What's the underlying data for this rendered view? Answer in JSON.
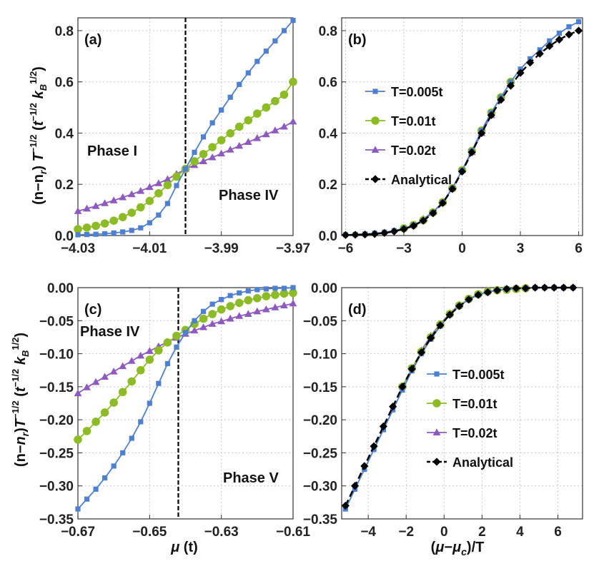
{
  "colors": {
    "blue": "#4f7fcf",
    "green": "#8dbb25",
    "purple": "#8d5bbf",
    "black": "#000000",
    "grid": "#c8c8c8"
  },
  "xlabel_bottom": "μ (t)",
  "xlabel_bottom_right": "(μ−μ_c)/T",
  "ylabel_top": "(n−n_r) T^{−1/2} (t^{−1/2} k_B^{1/2})",
  "ylabel_bottom": "(n−n_r) T^{−1/2} (t^{−1/2} k_B^{1/2})",
  "chart_data": [
    {
      "panel": "(a)",
      "type": "line",
      "xlim": [
        -4.03,
        -3.97
      ],
      "ylim": [
        0,
        0.85
      ],
      "xticks": [
        -4.03,
        -4.01,
        -3.99,
        -3.97
      ],
      "xtick_labels": [
        "−4.03",
        "−4.01",
        "−3.99",
        "−3.97"
      ],
      "yticks": [
        0,
        0.2,
        0.4,
        0.6,
        0.8
      ],
      "ytick_labels": [
        "0.0",
        "0.2",
        "0.4",
        "0.6",
        "0.8"
      ],
      "vline": -4.0,
      "annotations": [
        "Phase I",
        "Phase IV"
      ],
      "x": [
        -4.03,
        -4.0275,
        -4.025,
        -4.0225,
        -4.02,
        -4.0175,
        -4.015,
        -4.0125,
        -4.01,
        -4.0075,
        -4.005,
        -4.0025,
        -4.0,
        -3.9975,
        -3.995,
        -3.9925,
        -3.99,
        -3.9875,
        -3.985,
        -3.9825,
        -3.98,
        -3.9775,
        -3.975,
        -3.9725,
        -3.97
      ],
      "series": [
        {
          "name": "T=0.005t",
          "marker": "square",
          "values": [
            0.003,
            0.004,
            0.005,
            0.007,
            0.01,
            0.014,
            0.02,
            0.03,
            0.05,
            0.08,
            0.125,
            0.195,
            0.26,
            0.325,
            0.385,
            0.44,
            0.49,
            0.54,
            0.59,
            0.635,
            0.68,
            0.72,
            0.76,
            0.8,
            0.84
          ]
        },
        {
          "name": "T=0.01t",
          "marker": "circle",
          "values": [
            0.025,
            0.031,
            0.038,
            0.047,
            0.058,
            0.072,
            0.089,
            0.11,
            0.135,
            0.165,
            0.197,
            0.23,
            0.26,
            0.29,
            0.318,
            0.345,
            0.372,
            0.399,
            0.425,
            0.45,
            0.476,
            0.5,
            0.525,
            0.55,
            0.6
          ]
        },
        {
          "name": "T=0.02t",
          "marker": "triangle",
          "values": [
            0.095,
            0.105,
            0.115,
            0.126,
            0.137,
            0.149,
            0.161,
            0.174,
            0.189,
            0.204,
            0.22,
            0.24,
            0.26,
            0.275,
            0.29,
            0.305,
            0.32,
            0.335,
            0.35,
            0.365,
            0.38,
            0.395,
            0.41,
            0.425,
            0.445
          ]
        }
      ]
    },
    {
      "panel": "(b)",
      "type": "line",
      "xlim": [
        -6.2,
        6.2
      ],
      "ylim": [
        0,
        0.85
      ],
      "xticks": [
        -6,
        -3,
        0,
        3,
        6
      ],
      "xtick_labels": [
        "−6",
        "−3",
        "0",
        "3",
        "6"
      ],
      "yticks": [
        0,
        0.2,
        0.4,
        0.6,
        0.8
      ],
      "ytick_labels": [
        "0.0",
        "0.2",
        "0.4",
        "0.6",
        "0.8"
      ],
      "legend": [
        "T=0.005t",
        "T=0.01t",
        "T=0.02t",
        "Analytical"
      ],
      "x": [
        -6,
        -5.5,
        -5,
        -4.5,
        -4,
        -3.5,
        -3,
        -2.5,
        -2,
        -1.5,
        -1,
        -0.5,
        0,
        0.5,
        1,
        1.5,
        2,
        2.5,
        3,
        3.5,
        4,
        4.5,
        5,
        5.5,
        6
      ],
      "series": [
        {
          "name": "T=0.005t",
          "marker": "square",
          "values": [
            0.003,
            0.004,
            0.006,
            0.009,
            0.013,
            0.019,
            0.028,
            0.041,
            0.06,
            0.09,
            0.13,
            0.185,
            0.255,
            0.33,
            0.41,
            0.48,
            0.54,
            0.6,
            0.65,
            0.69,
            0.725,
            0.76,
            0.79,
            0.815,
            0.835
          ]
        },
        {
          "name": "T=0.01t",
          "marker": "circle",
          "values": [
            null,
            null,
            null,
            null,
            null,
            null,
            0.028,
            0.041,
            0.06,
            0.09,
            0.13,
            0.185,
            0.255,
            0.33,
            0.41,
            0.48,
            0.54,
            0.6,
            null,
            null,
            null,
            null,
            null,
            null,
            null
          ]
        },
        {
          "name": "T=0.02t",
          "marker": "triangle",
          "values": [
            null,
            null,
            null,
            null,
            null,
            null,
            null,
            null,
            0.065,
            0.092,
            0.13,
            0.185,
            0.255,
            0.325,
            0.4,
            0.47,
            null,
            null,
            null,
            null,
            null,
            null,
            null,
            null,
            null
          ]
        },
        {
          "name": "Analytical",
          "marker": "diamond",
          "values": [
            0.002,
            0.003,
            0.004,
            0.006,
            0.01,
            0.016,
            0.025,
            0.038,
            0.058,
            0.087,
            0.127,
            0.182,
            0.25,
            0.325,
            0.4,
            0.47,
            0.53,
            0.585,
            0.635,
            0.675,
            0.71,
            0.74,
            0.765,
            0.785,
            0.8
          ]
        }
      ]
    },
    {
      "panel": "(c)",
      "type": "line",
      "xlim": [
        -0.67,
        -0.61
      ],
      "ylim": [
        -0.35,
        0
      ],
      "xticks": [
        -0.67,
        -0.65,
        -0.63,
        -0.61
      ],
      "xtick_labels": [
        "−0.67",
        "−0.65",
        "−0.63",
        "−0.61"
      ],
      "yticks": [
        0,
        -0.05,
        -0.1,
        -0.15,
        -0.2,
        -0.25,
        -0.3,
        -0.35
      ],
      "ytick_labels": [
        "0.00",
        "−0.05",
        "−0.10",
        "−0.15",
        "−0.20",
        "−0.25",
        "−0.30",
        "−0.35"
      ],
      "vline": -0.642,
      "annotations": [
        "Phase IV",
        "Phase V"
      ],
      "x": [
        -0.67,
        -0.6675,
        -0.665,
        -0.6625,
        -0.66,
        -0.6575,
        -0.655,
        -0.6525,
        -0.65,
        -0.6475,
        -0.645,
        -0.6425,
        -0.64,
        -0.6375,
        -0.635,
        -0.6325,
        -0.63,
        -0.6275,
        -0.625,
        -0.6225,
        -0.62,
        -0.6175,
        -0.615,
        -0.6125,
        -0.61
      ],
      "series": [
        {
          "name": "T=0.005t",
          "marker": "square",
          "values": [
            -0.335,
            -0.32,
            -0.305,
            -0.288,
            -0.27,
            -0.25,
            -0.228,
            -0.203,
            -0.175,
            -0.145,
            -0.115,
            -0.09,
            -0.068,
            -0.05,
            -0.036,
            -0.025,
            -0.018,
            -0.012,
            -0.008,
            -0.005,
            -0.003,
            -0.002,
            -0.001,
            -0.001,
            0.0
          ]
        },
        {
          "name": "T=0.01t",
          "marker": "circle",
          "values": [
            -0.23,
            -0.217,
            -0.203,
            -0.189,
            -0.174,
            -0.158,
            -0.142,
            -0.125,
            -0.109,
            -0.095,
            -0.083,
            -0.073,
            -0.064,
            -0.055,
            -0.047,
            -0.04,
            -0.033,
            -0.028,
            -0.023,
            -0.019,
            -0.016,
            -0.013,
            -0.011,
            -0.009,
            -0.008
          ]
        },
        {
          "name": "T=0.02t",
          "marker": "triangle",
          "values": [
            -0.16,
            -0.151,
            -0.143,
            -0.135,
            -0.127,
            -0.119,
            -0.111,
            -0.103,
            -0.096,
            -0.089,
            -0.082,
            -0.076,
            -0.07,
            -0.065,
            -0.06,
            -0.055,
            -0.051,
            -0.047,
            -0.043,
            -0.04,
            -0.036,
            -0.033,
            -0.03,
            -0.027,
            -0.024
          ]
        }
      ]
    },
    {
      "panel": "(d)",
      "type": "line",
      "xlim": [
        -5.4,
        7.3
      ],
      "ylim": [
        -0.35,
        0
      ],
      "xticks": [
        -4,
        -2,
        0,
        2,
        4,
        6
      ],
      "xtick_labels": [
        "−4",
        "−2",
        "0",
        "2",
        "4",
        "6"
      ],
      "yticks": [
        0,
        -0.05,
        -0.1,
        -0.15,
        -0.2,
        -0.25,
        -0.3,
        -0.35
      ],
      "ytick_labels": [
        "0.00",
        "−0.05",
        "−0.10",
        "−0.15",
        "−0.20",
        "−0.25",
        "−0.30",
        "−0.35"
      ],
      "legend": [
        "T=0.005t",
        "T=0.01t",
        "T=0.02t",
        "Analytical"
      ],
      "x": [
        -5.2,
        -4.7,
        -4.2,
        -3.7,
        -3.2,
        -2.7,
        -2.2,
        -1.7,
        -1.2,
        -0.7,
        -0.2,
        0.3,
        0.8,
        1.3,
        1.8,
        2.3,
        2.8,
        3.3,
        3.8,
        4.3,
        4.8,
        5.3,
        5.8,
        6.3,
        6.8
      ],
      "series": [
        {
          "name": "T=0.005t",
          "marker": "square",
          "values": [
            -0.335,
            -0.305,
            -0.275,
            -0.245,
            -0.215,
            -0.185,
            -0.155,
            -0.126,
            -0.1,
            -0.078,
            -0.058,
            -0.041,
            -0.028,
            -0.018,
            -0.011,
            -0.007,
            -0.004,
            -0.002,
            -0.001,
            -0.001,
            0.0,
            0.0,
            0.0,
            0.0,
            0.0
          ]
        },
        {
          "name": "T=0.01t",
          "marker": "circle",
          "values": [
            null,
            null,
            null,
            null,
            null,
            null,
            -0.15,
            -0.122,
            -0.097,
            -0.075,
            -0.056,
            -0.04,
            -0.027,
            -0.017,
            -0.01,
            -0.006,
            -0.004,
            -0.003,
            -0.002,
            -0.001,
            null,
            null,
            null,
            null,
            null
          ]
        },
        {
          "name": "T=0.02t",
          "marker": "triangle",
          "values": [
            null,
            null,
            null,
            null,
            null,
            null,
            null,
            null,
            -0.095,
            -0.073,
            -0.055,
            -0.039,
            -0.026,
            null,
            null,
            null,
            null,
            null,
            null,
            null,
            null,
            null,
            null,
            null,
            null
          ]
        },
        {
          "name": "Analytical",
          "marker": "diamond",
          "values": [
            -0.33,
            -0.3,
            -0.27,
            -0.24,
            -0.21,
            -0.18,
            -0.15,
            -0.123,
            -0.098,
            -0.076,
            -0.057,
            -0.041,
            -0.028,
            -0.018,
            -0.011,
            -0.007,
            -0.004,
            -0.002,
            -0.001,
            -0.001,
            0.0,
            0.0,
            0.0,
            0.0,
            0.0
          ]
        }
      ]
    }
  ]
}
